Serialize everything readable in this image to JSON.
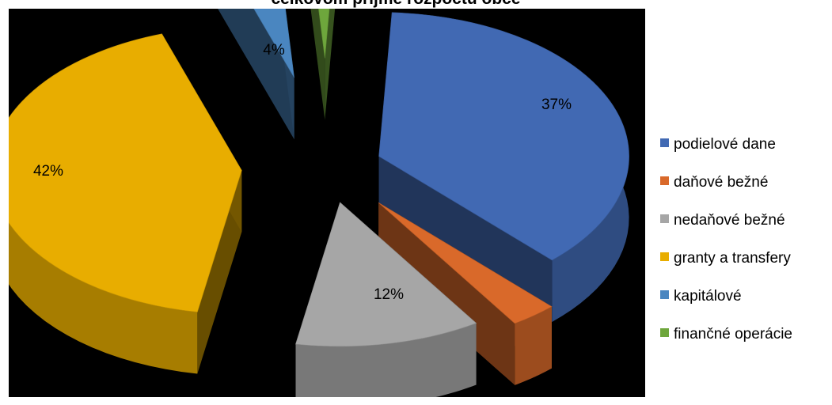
{
  "chart_data": {
    "type": "pie",
    "title": "celkovom príjme rozpočtu obce",
    "slices": [
      {
        "name": "podielové dane",
        "value": 37,
        "label": "37%",
        "color": "#4169B3"
      },
      {
        "name": "daňové bežné",
        "value": 3,
        "label": "",
        "color": "#D9692A"
      },
      {
        "name": "nedaňové bežné",
        "value": 12,
        "label": "12%",
        "color": "#A6A6A6"
      },
      {
        "name": "granty a transfery",
        "value": 42,
        "label": "42%",
        "color": "#E8AD00"
      },
      {
        "name": "kapitálové",
        "value": 4,
        "label": "4%",
        "color": "#4A86C0"
      },
      {
        "name": "finančné operácie",
        "value": 2,
        "label": "",
        "color": "#6EA63C"
      }
    ],
    "legend_position": "right",
    "exploded": true,
    "three_d": true
  }
}
